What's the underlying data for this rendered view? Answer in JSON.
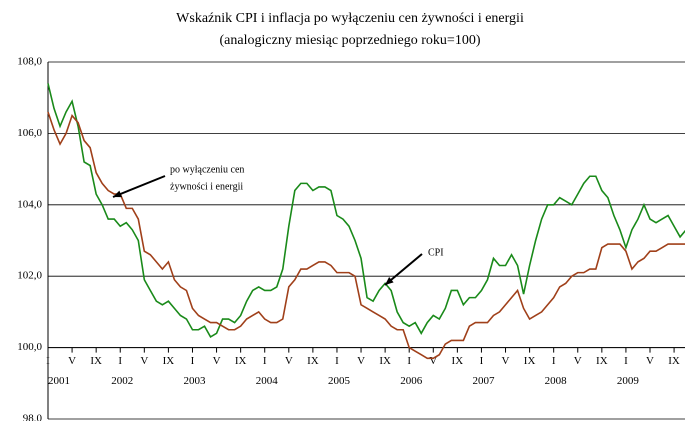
{
  "chart_data": {
    "type": "line",
    "title": "Wskaźnik CPI i inflacja po wyłączeniu cen żywności i energii",
    "subtitle": "(analogiczny miesiąc poprzedniego roku=100)",
    "categories": [
      "I",
      null,
      null,
      null,
      "V",
      null,
      null,
      null,
      "IX",
      null,
      null,
      null,
      "I",
      null,
      null,
      null,
      "V",
      null,
      null,
      null,
      "IX",
      null,
      null,
      null,
      "I",
      null,
      null,
      null,
      "V",
      null,
      null,
      null,
      "IX",
      null,
      null,
      null,
      "I",
      null,
      null,
      null,
      "V",
      null,
      null,
      null,
      "IX",
      null,
      null,
      null,
      "I",
      null,
      null,
      null,
      "V",
      null,
      null,
      null,
      "IX",
      null,
      null,
      null,
      "I",
      null,
      null,
      null,
      "V",
      null,
      null,
      null,
      "IX",
      null,
      null,
      null,
      "I",
      null,
      null,
      null,
      "V",
      null,
      null,
      null,
      "IX",
      null,
      null,
      null,
      "I",
      null,
      null,
      null,
      "V",
      null,
      null,
      null,
      "IX",
      null,
      null,
      null,
      "I",
      null,
      null,
      null,
      "V",
      null,
      null,
      null,
      "IX",
      null,
      null
    ],
    "years": [
      "2001",
      "2002",
      "2003",
      "2004",
      "2005",
      "2006",
      "2007",
      "2008",
      "2009"
    ],
    "series": [
      {
        "name": [
          "CPI"
        ],
        "color": "#1a8a1a",
        "values": [
          107.4,
          106.7,
          106.2,
          106.6,
          106.9,
          106.2,
          105.2,
          105.1,
          104.3,
          104.0,
          103.6,
          103.6,
          103.4,
          103.5,
          103.3,
          103.0,
          101.9,
          101.6,
          101.3,
          101.2,
          101.3,
          101.1,
          100.9,
          100.8,
          100.5,
          100.5,
          100.6,
          100.3,
          100.4,
          100.8,
          100.8,
          100.7,
          100.9,
          101.3,
          101.6,
          101.7,
          101.6,
          101.6,
          101.7,
          102.2,
          103.4,
          104.4,
          104.6,
          104.6,
          104.4,
          104.5,
          104.5,
          104.4,
          103.7,
          103.6,
          103.4,
          103.0,
          102.5,
          101.4,
          101.3,
          101.6,
          101.8,
          101.6,
          101.0,
          100.7,
          100.6,
          100.7,
          100.4,
          100.7,
          100.9,
          100.8,
          101.1,
          101.6,
          101.6,
          101.2,
          101.4,
          101.4,
          101.6,
          101.9,
          102.5,
          102.3,
          102.3,
          102.6,
          102.3,
          101.5,
          102.3,
          103.0,
          103.6,
          104.0,
          104.0,
          104.2,
          104.1,
          104.0,
          104.3,
          104.6,
          104.8,
          104.8,
          104.4,
          104.2,
          103.7,
          103.3,
          102.8,
          103.3,
          103.6,
          104.0,
          103.6,
          103.5,
          103.6,
          103.7,
          103.4,
          103.1,
          103.3
        ]
      },
      {
        "name": [
          "po wyłączeniu cen",
          "żywności i energii"
        ],
        "color": "#a0401a",
        "values": [
          106.6,
          106.1,
          105.7,
          106.0,
          106.5,
          106.3,
          105.8,
          105.6,
          104.9,
          104.6,
          104.4,
          104.3,
          104.3,
          103.9,
          103.9,
          103.6,
          102.7,
          102.6,
          102.4,
          102.2,
          102.4,
          101.9,
          101.7,
          101.6,
          101.1,
          100.9,
          100.8,
          100.7,
          100.7,
          100.6,
          100.5,
          100.5,
          100.6,
          100.8,
          100.9,
          101.0,
          100.8,
          100.7,
          100.7,
          100.8,
          101.7,
          101.9,
          102.2,
          102.2,
          102.3,
          102.4,
          102.4,
          102.3,
          102.1,
          102.1,
          102.1,
          102.0,
          101.2,
          101.1,
          101.0,
          100.9,
          100.8,
          100.6,
          100.5,
          100.5,
          100.0,
          99.9,
          99.8,
          99.7,
          99.7,
          99.8,
          100.1,
          100.2,
          100.2,
          100.2,
          100.6,
          100.7,
          100.7,
          100.7,
          100.9,
          101.0,
          101.2,
          101.4,
          101.6,
          101.1,
          100.8,
          100.9,
          101.0,
          101.2,
          101.4,
          101.7,
          101.8,
          102.0,
          102.1,
          102.1,
          102.2,
          102.2,
          102.8,
          102.9,
          102.9,
          102.9,
          102.7,
          102.2,
          102.4,
          102.5,
          102.7,
          102.7,
          102.8,
          102.9,
          102.9,
          102.9,
          102.9
        ]
      }
    ],
    "ylim": [
      98,
      108
    ],
    "yticks": [
      {
        "value": 98,
        "label": "98,0"
      },
      {
        "value": 100,
        "label": "100,0"
      },
      {
        "value": 102,
        "label": "102,0"
      },
      {
        "value": 104,
        "label": "104,0"
      },
      {
        "value": 106,
        "label": "106,0"
      },
      {
        "value": 108,
        "label": "108,0"
      }
    ],
    "axis_crossing": 100,
    "grid": true
  }
}
